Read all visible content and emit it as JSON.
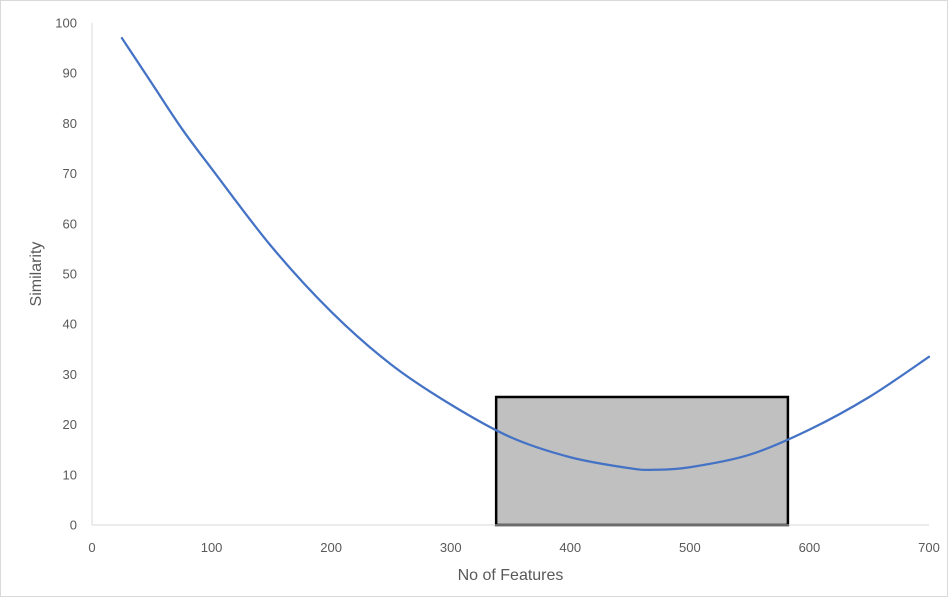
{
  "chart_data": {
    "type": "line",
    "title": "",
    "xlabel": "No of Features",
    "ylabel": "Similarity",
    "xlim": [
      0,
      700
    ],
    "ylim": [
      0,
      100
    ],
    "x_ticks": [
      "0",
      "100",
      "200",
      "300",
      "400",
      "500",
      "600",
      "700"
    ],
    "y_ticks": [
      "0",
      "10",
      "20",
      "30",
      "40",
      "50",
      "60",
      "70",
      "80",
      "90",
      "100"
    ],
    "grid": false,
    "legend": "none",
    "series": [
      {
        "color": "#4472c4",
        "x": [
          25,
          50,
          75,
          100,
          150,
          200,
          250,
          300,
          350,
          400,
          450,
          470,
          500,
          550,
          600,
          650,
          700
        ],
        "y": [
          97,
          88,
          79,
          71,
          55.5,
          42.5,
          32,
          24,
          17.5,
          13.5,
          11.3,
          11,
          11.5,
          14,
          19,
          25.5,
          33.5
        ]
      }
    ],
    "highlight_box": {
      "x": [
        338,
        582
      ],
      "y": [
        0,
        25.5
      ],
      "fill": "#c0c0c0",
      "stroke": "#000000"
    }
  }
}
